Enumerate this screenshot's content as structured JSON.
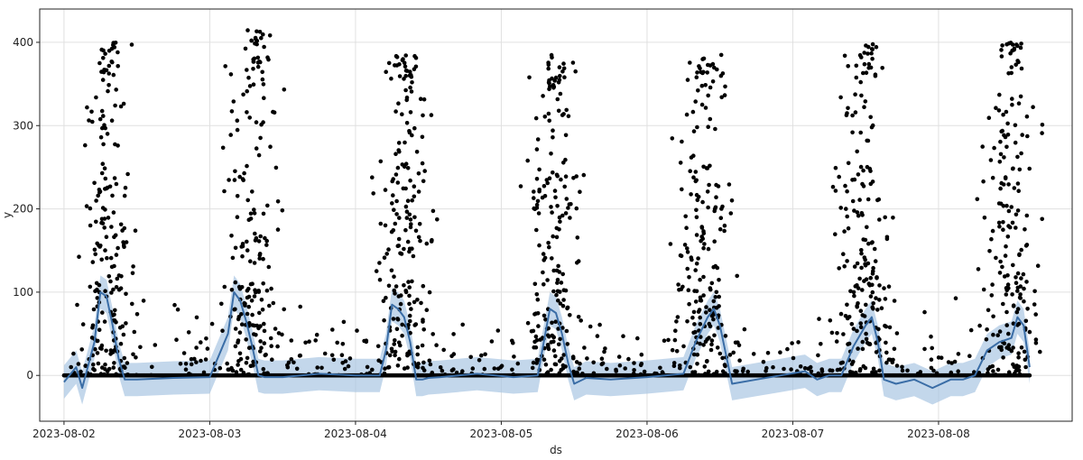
{
  "chart_data": {
    "type": "scatter",
    "title": "",
    "xlabel": "ds",
    "ylabel": "y",
    "xlim": [
      "2023-08-01T20:00",
      "2023-08-08T22:00"
    ],
    "ylim": [
      -55,
      440
    ],
    "grid": true,
    "x_ticks": [
      "2023-08-02",
      "2023-08-03",
      "2023-08-04",
      "2023-08-05",
      "2023-08-06",
      "2023-08-07",
      "2023-08-08"
    ],
    "y_ticks": [
      0,
      100,
      200,
      300,
      400
    ],
    "colors": {
      "points": "#000000",
      "forecast_line": "#3a6da6",
      "uncertainty_band": "#a9c6e2",
      "grid": "#e0e0e0",
      "frame": "#222222"
    },
    "series": [
      {
        "kind": "observed points",
        "description": "hourly observations; zero baseline with daily spikes peaking around 07:00 each day",
        "x_start": "2023-08-02T00:00",
        "x_end": "2023-08-08T15:00",
        "baseline": 0,
        "daily_spike_peaks": [
          {
            "day": "2023-08-02",
            "peak_time": "07:00",
            "max_y": 400
          },
          {
            "day": "2023-08-03",
            "peak_time": "07:00",
            "max_y": 415
          },
          {
            "day": "2023-08-04",
            "peak_time": "08:00",
            "max_y": 385
          },
          {
            "day": "2023-08-05",
            "peak_time": "08:30",
            "max_y": 385
          },
          {
            "day": "2023-08-06",
            "peak_time": "09:30",
            "max_y": 385
          },
          {
            "day": "2023-08-07",
            "peak_time": "11:30",
            "max_y": 400
          },
          {
            "day": "2023-08-08",
            "peak_time": "12:00",
            "max_y": 400
          }
        ]
      },
      {
        "kind": "forecast",
        "x": [
          "2023-08-02T00:00",
          "2023-08-02T02:00",
          "2023-08-02T03:00",
          "2023-08-02T05:00",
          "2023-08-02T06:00",
          "2023-08-02T07:00",
          "2023-08-02T08:00",
          "2023-08-02T09:00",
          "2023-08-02T10:00",
          "2023-08-02T12:00",
          "2023-08-02T18:00",
          "2023-08-03T00:00",
          "2023-08-03T03:00",
          "2023-08-03T04:00",
          "2023-08-03T05:00",
          "2023-08-03T06:00",
          "2023-08-03T07:00",
          "2023-08-03T08:00",
          "2023-08-03T09:00",
          "2023-08-03T10:00",
          "2023-08-03T11:00",
          "2023-08-03T12:00",
          "2023-08-03T18:00",
          "2023-08-04T00:00",
          "2023-08-04T04:00",
          "2023-08-04T05:00",
          "2023-08-04T06:00",
          "2023-08-04T07:00",
          "2023-08-04T08:00",
          "2023-08-04T09:00",
          "2023-08-04T10:00",
          "2023-08-04T11:00",
          "2023-08-04T12:00",
          "2023-08-04T14:00",
          "2023-08-04T20:00",
          "2023-08-05T02:00",
          "2023-08-05T06:00",
          "2023-08-05T07:00",
          "2023-08-05T08:00",
          "2023-08-05T09:00",
          "2023-08-05T10:00",
          "2023-08-05T11:00",
          "2023-08-05T12:00",
          "2023-08-05T14:00",
          "2023-08-05T18:00",
          "2023-08-06T00:00",
          "2023-08-06T06:00",
          "2023-08-06T08:00",
          "2023-08-06T10:00",
          "2023-08-06T11:00",
          "2023-08-06T12:00",
          "2023-08-06T13:00",
          "2023-08-06T14:00",
          "2023-08-06T18:00",
          "2023-08-06T22:00",
          "2023-08-07T02:00",
          "2023-08-07T04:00",
          "2023-08-07T06:00",
          "2023-08-07T08:00",
          "2023-08-07T10:00",
          "2023-08-07T12:00",
          "2023-08-07T13:00",
          "2023-08-07T14:00",
          "2023-08-07T15:00",
          "2023-08-07T17:00",
          "2023-08-07T20:00",
          "2023-08-07T23:00",
          "2023-08-08T02:00",
          "2023-08-08T04:00",
          "2023-08-08T06:00",
          "2023-08-08T08:00",
          "2023-08-08T10:00",
          "2023-08-08T12:00",
          "2023-08-08T13:00",
          "2023-08-08T14:00",
          "2023-08-08T15:00"
        ],
        "y": [
          -8,
          10,
          -15,
          40,
          100,
          95,
          60,
          20,
          -5,
          -5,
          -3,
          -2,
          50,
          100,
          90,
          65,
          35,
          0,
          -2,
          -2,
          -2,
          -2,
          2,
          0,
          0,
          30,
          85,
          80,
          70,
          40,
          -5,
          -5,
          -3,
          -2,
          2,
          -2,
          0,
          40,
          80,
          75,
          50,
          15,
          -10,
          -3,
          -5,
          -2,
          2,
          40,
          70,
          80,
          60,
          25,
          -10,
          -5,
          0,
          5,
          -5,
          0,
          0,
          35,
          60,
          70,
          40,
          -5,
          -10,
          -5,
          -15,
          -5,
          -5,
          0,
          30,
          40,
          45,
          70,
          60,
          10
        ],
        "band_half_width": 20
      }
    ]
  }
}
